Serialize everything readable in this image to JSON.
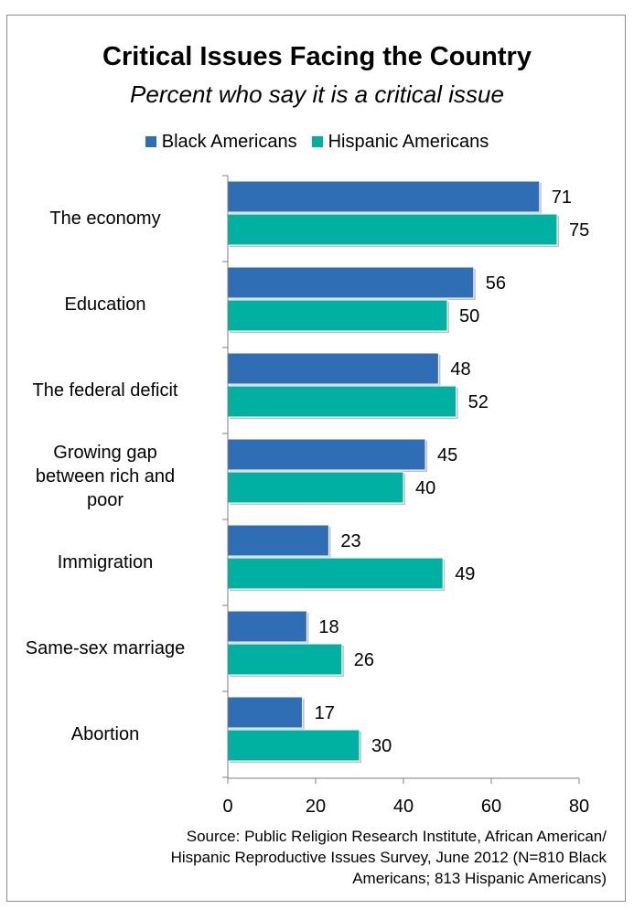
{
  "chart_data": {
    "type": "bar",
    "orientation": "horizontal",
    "title": "Critical Issues Facing the Country",
    "subtitle": "Percent who say it is a critical issue",
    "categories": [
      "The economy",
      "Education",
      "The federal deficit",
      "Growing gap between rich and poor",
      "Immigration",
      "Same-sex marriage",
      "Abortion"
    ],
    "category_lines": [
      [
        "The economy"
      ],
      [
        "Education"
      ],
      [
        "The federal deficit"
      ],
      [
        "Growing gap",
        "between rich and",
        "poor"
      ],
      [
        "Immigration"
      ],
      [
        "Same-sex marriage"
      ],
      [
        "Abortion"
      ]
    ],
    "series": [
      {
        "name": "Black Americans",
        "color": "#2f6db5",
        "values": [
          71,
          56,
          48,
          45,
          23,
          18,
          17
        ]
      },
      {
        "name": "Hispanic Americans",
        "color": "#00b0a0",
        "values": [
          75,
          50,
          52,
          40,
          49,
          26,
          30
        ]
      }
    ],
    "xlim": [
      0,
      80
    ],
    "xticks": [
      0,
      20,
      40,
      60,
      80
    ],
    "legend_position": "top",
    "grid": false,
    "data_labels": true
  },
  "source": [
    "Source: Public Religion Research Institute, African American/",
    "Hispanic Reproductive Issues Survey, June 2012 (N=810 Black",
    "Americans; 813 Hispanic Americans)"
  ]
}
